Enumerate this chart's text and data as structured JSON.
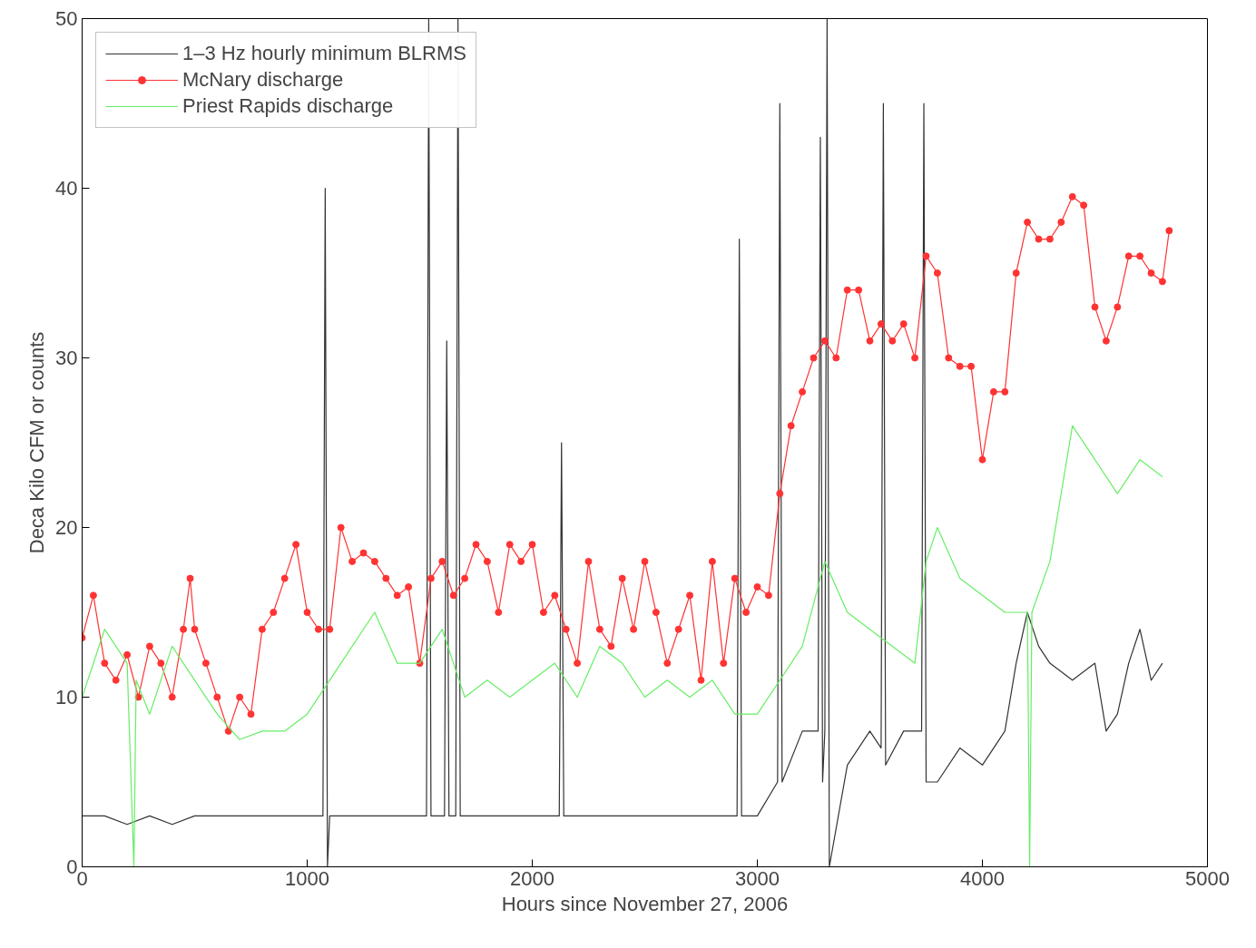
{
  "chart_data": {
    "type": "line",
    "xlabel": "Hours since November 27, 2006",
    "ylabel": "Deca Kilo CFM or counts",
    "xlim": [
      0,
      5000
    ],
    "ylim": [
      0,
      50
    ],
    "xticks": [
      0,
      1000,
      2000,
      3000,
      4000,
      5000
    ],
    "yticks": [
      0,
      10,
      20,
      30,
      40,
      50
    ],
    "grid": false,
    "legend": "top left",
    "series": [
      {
        "name": "1–3 Hz hourly minimum BLRMS",
        "color": "#333333",
        "marker": "none",
        "x": [
          0,
          100,
          200,
          300,
          400,
          500,
          600,
          700,
          800,
          900,
          1000,
          1070,
          1080,
          1090,
          1100,
          1200,
          1300,
          1400,
          1500,
          1530,
          1540,
          1550,
          1610,
          1620,
          1630,
          1660,
          1670,
          1680,
          1800,
          1900,
          2000,
          2120,
          2130,
          2140,
          2300,
          2500,
          2700,
          2900,
          2910,
          2920,
          2930,
          3000,
          3090,
          3100,
          3110,
          3200,
          3270,
          3280,
          3290,
          3300,
          3310,
          3320,
          3400,
          3500,
          3550,
          3560,
          3570,
          3650,
          3730,
          3740,
          3750,
          3800,
          3900,
          4000,
          4100,
          4150,
          4200,
          4250,
          4300,
          4400,
          4500,
          4550,
          4600,
          4650,
          4700,
          4750,
          4800
        ],
        "values": [
          3,
          3,
          2.5,
          3,
          2.5,
          3,
          3,
          3,
          3,
          3,
          3,
          3,
          40,
          0,
          3,
          3,
          3,
          3,
          3,
          3,
          50,
          3,
          3,
          31,
          3,
          3,
          50,
          3,
          3,
          3,
          3,
          3,
          25,
          3,
          3,
          3,
          3,
          3,
          3,
          37,
          3,
          3,
          5,
          45,
          5,
          8,
          8,
          43,
          5,
          8,
          50,
          0,
          6,
          8,
          7,
          45,
          6,
          8,
          8,
          45,
          5,
          5,
          7,
          6,
          8,
          12,
          15,
          13,
          12,
          11,
          12,
          8,
          9,
          12,
          14,
          11,
          12
        ]
      },
      {
        "name": "McNary discharge",
        "color": "#ff3333",
        "marker": "circle",
        "x": [
          0,
          50,
          100,
          150,
          200,
          250,
          300,
          350,
          400,
          450,
          480,
          500,
          550,
          600,
          650,
          700,
          750,
          800,
          850,
          900,
          950,
          1000,
          1050,
          1100,
          1150,
          1200,
          1250,
          1300,
          1350,
          1400,
          1450,
          1500,
          1550,
          1600,
          1650,
          1700,
          1750,
          1800,
          1850,
          1900,
          1950,
          2000,
          2050,
          2100,
          2150,
          2200,
          2250,
          2300,
          2350,
          2400,
          2450,
          2500,
          2550,
          2600,
          2650,
          2700,
          2750,
          2800,
          2850,
          2900,
          2950,
          3000,
          3050,
          3100,
          3150,
          3200,
          3250,
          3300,
          3350,
          3400,
          3450,
          3500,
          3550,
          3600,
          3650,
          3700,
          3750,
          3800,
          3850,
          3900,
          3950,
          4000,
          4050,
          4100,
          4150,
          4200,
          4250,
          4300,
          4350,
          4400,
          4450,
          4500,
          4550,
          4600,
          4650,
          4700,
          4750,
          4800,
          4830
        ],
        "values": [
          13.5,
          16,
          12,
          11,
          12.5,
          10,
          13,
          12,
          10,
          14,
          17,
          14,
          12,
          10,
          8,
          10,
          9,
          14,
          15,
          17,
          19,
          15,
          14,
          14,
          20,
          18,
          18.5,
          18,
          17,
          16,
          16.5,
          12,
          17,
          18,
          16,
          17,
          19,
          18,
          15,
          19,
          18,
          19,
          15,
          16,
          14,
          12,
          18,
          14,
          13,
          17,
          14,
          18,
          15,
          12,
          14,
          16,
          11,
          18,
          12,
          17,
          15,
          16.5,
          16,
          22,
          26,
          28,
          30,
          31,
          30,
          34,
          34,
          31,
          32,
          31,
          32,
          30,
          36,
          35,
          30,
          29.5,
          29.5,
          24,
          28,
          28,
          35,
          38,
          37,
          37,
          38,
          39.5,
          39,
          33,
          31,
          33,
          36,
          36,
          35,
          34.5,
          37.5
        ]
      },
      {
        "name": "Priest Rapids discharge",
        "color": "#66ee66",
        "marker": "none",
        "x": [
          0,
          100,
          200,
          230,
          240,
          300,
          400,
          500,
          600,
          700,
          800,
          900,
          1000,
          1100,
          1200,
          1300,
          1400,
          1500,
          1600,
          1700,
          1800,
          1900,
          2000,
          2100,
          2200,
          2300,
          2400,
          2500,
          2600,
          2700,
          2800,
          2900,
          3000,
          3100,
          3200,
          3300,
          3400,
          3500,
          3600,
          3700,
          3750,
          3800,
          3900,
          4000,
          4100,
          4200,
          4210,
          4220,
          4300,
          4400,
          4500,
          4600,
          4700,
          4800
        ],
        "values": [
          10,
          14,
          12,
          0,
          11,
          9,
          13,
          11,
          9,
          7.5,
          8,
          8,
          9,
          11,
          13,
          15,
          12,
          12,
          14,
          10,
          11,
          10,
          11,
          12,
          10,
          13,
          12,
          10,
          11,
          10,
          11,
          9,
          9,
          11,
          13,
          18,
          15,
          14,
          13,
          12,
          18,
          20,
          17,
          16,
          15,
          15,
          0,
          15,
          18,
          26,
          24,
          22,
          24,
          23
        ]
      }
    ]
  }
}
